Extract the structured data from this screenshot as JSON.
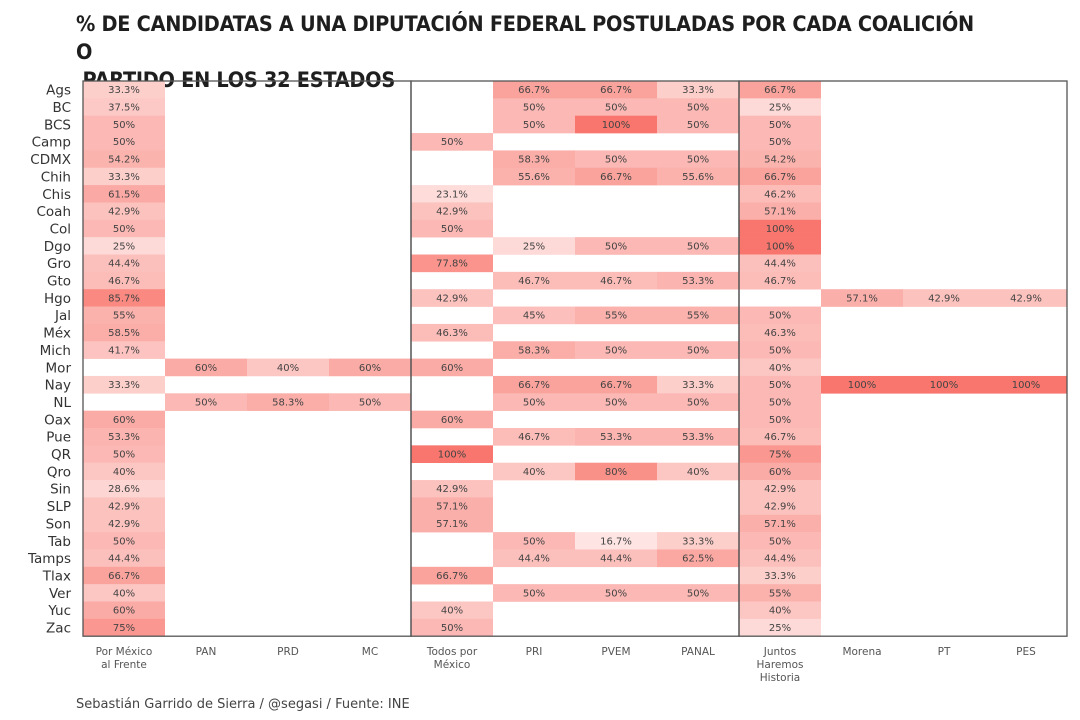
{
  "title": "% DE CANDIDATAS A UNA DIPUTACIÓN FEDERAL POSTULADAS POR CADA COALICIÓN O\n PARTIDO EN LOS 32 ESTADOS",
  "footer": "Sebastián Garrido de Sierra / @segasi / Fuente: INE",
  "colors": {
    "low": "#ffffff",
    "high": "#f8766d",
    "border": "#555555",
    "text": "#444444"
  },
  "chart_data": {
    "type": "heatmap",
    "title": "% DE CANDIDATAS A UNA DIPUTACIÓN FEDERAL POSTULADAS POR CADA COALICIÓN O PARTIDO EN LOS 32 ESTADOS",
    "xlabel": "",
    "ylabel": "",
    "value_range": [
      0,
      100
    ],
    "units": "%",
    "columns": [
      {
        "key": "PMAF",
        "label": [
          "Por México",
          "al Frente"
        ]
      },
      {
        "key": "PAN",
        "label": [
          "PAN"
        ]
      },
      {
        "key": "PRD",
        "label": [
          "PRD"
        ]
      },
      {
        "key": "MC",
        "label": [
          "MC"
        ]
      },
      {
        "key": "TPM",
        "label": [
          "Todos por",
          "México"
        ]
      },
      {
        "key": "PRI",
        "label": [
          "PRI"
        ]
      },
      {
        "key": "PVEM",
        "label": [
          "PVEM"
        ]
      },
      {
        "key": "PANAL",
        "label": [
          "PANAL"
        ]
      },
      {
        "key": "JHH",
        "label": [
          "Juntos",
          "Haremos",
          "Historia"
        ]
      },
      {
        "key": "Morena",
        "label": [
          "Morena"
        ]
      },
      {
        "key": "PT",
        "label": [
          "PT"
        ]
      },
      {
        "key": "PES",
        "label": [
          "PES"
        ]
      }
    ],
    "coalition_groups": [
      {
        "name": "Por México al Frente",
        "columns": [
          "PMAF",
          "PAN",
          "PRD",
          "MC"
        ]
      },
      {
        "name": "Todos por México",
        "columns": [
          "TPM",
          "PRI",
          "PVEM",
          "PANAL"
        ]
      },
      {
        "name": "Juntos Haremos Historia",
        "columns": [
          "JHH",
          "Morena",
          "PT",
          "PES"
        ]
      }
    ],
    "rows": [
      {
        "state": "Ags",
        "values": [
          33.3,
          null,
          null,
          null,
          null,
          66.7,
          66.7,
          33.3,
          66.7,
          null,
          null,
          null
        ],
        "labels": [
          "33.3%",
          "",
          "",
          "",
          "",
          "66.7%",
          "66.7%",
          "33.3%",
          "66.7%",
          "",
          "",
          ""
        ]
      },
      {
        "state": "BC",
        "values": [
          37.5,
          null,
          null,
          null,
          null,
          50,
          50,
          50,
          25,
          null,
          null,
          null
        ],
        "labels": [
          "37.5%",
          "",
          "",
          "",
          "",
          "50%",
          "50%",
          "50%",
          "25%",
          "",
          "",
          ""
        ]
      },
      {
        "state": "BCS",
        "values": [
          50,
          null,
          null,
          null,
          null,
          50,
          100,
          50,
          50,
          null,
          null,
          null
        ],
        "labels": [
          "50%",
          "",
          "",
          "",
          "",
          "50%",
          "100%",
          "50%",
          "50%",
          "",
          "",
          ""
        ]
      },
      {
        "state": "Camp",
        "values": [
          50,
          null,
          null,
          null,
          50,
          null,
          null,
          null,
          50,
          null,
          null,
          null
        ],
        "labels": [
          "50%",
          "",
          "",
          "",
          "50%",
          "",
          "",
          "",
          "50%",
          "",
          "",
          ""
        ]
      },
      {
        "state": "CDMX",
        "values": [
          54.2,
          null,
          null,
          null,
          null,
          58.3,
          50,
          50,
          54.2,
          null,
          null,
          null
        ],
        "labels": [
          "54.2%",
          "",
          "",
          "",
          "",
          "58.3%",
          "50%",
          "50%",
          "54.2%",
          "",
          "",
          ""
        ]
      },
      {
        "state": "Chih",
        "values": [
          33.3,
          null,
          null,
          null,
          null,
          55.6,
          66.7,
          55.6,
          66.7,
          null,
          null,
          null
        ],
        "labels": [
          "33.3%",
          "",
          "",
          "",
          "",
          "55.6%",
          "66.7%",
          "55.6%",
          "66.7%",
          "",
          "",
          ""
        ]
      },
      {
        "state": "Chis",
        "values": [
          61.5,
          null,
          null,
          null,
          23.1,
          null,
          null,
          null,
          46.2,
          null,
          null,
          null
        ],
        "labels": [
          "61.5%",
          "",
          "",
          "",
          "23.1%",
          "",
          "",
          "",
          "46.2%",
          "",
          "",
          ""
        ]
      },
      {
        "state": "Coah",
        "values": [
          42.9,
          null,
          null,
          null,
          42.9,
          null,
          null,
          null,
          57.1,
          null,
          null,
          null
        ],
        "labels": [
          "42.9%",
          "",
          "",
          "",
          "42.9%",
          "",
          "",
          "",
          "57.1%",
          "",
          "",
          ""
        ]
      },
      {
        "state": "Col",
        "values": [
          50,
          null,
          null,
          null,
          50,
          null,
          null,
          null,
          100,
          null,
          null,
          null
        ],
        "labels": [
          "50%",
          "",
          "",
          "",
          "50%",
          "",
          "",
          "",
          "100%",
          "",
          "",
          ""
        ]
      },
      {
        "state": "Dgo",
        "values": [
          25,
          null,
          null,
          null,
          null,
          25,
          50,
          50,
          100,
          null,
          null,
          null
        ],
        "labels": [
          "25%",
          "",
          "",
          "",
          "",
          "25%",
          "50%",
          "50%",
          "100%",
          "",
          "",
          ""
        ]
      },
      {
        "state": "Gro",
        "values": [
          44.4,
          null,
          null,
          null,
          77.8,
          null,
          null,
          null,
          44.4,
          null,
          null,
          null
        ],
        "labels": [
          "44.4%",
          "",
          "",
          "",
          "77.8%",
          "",
          "",
          "",
          "44.4%",
          "",
          "",
          ""
        ]
      },
      {
        "state": "Gto",
        "values": [
          46.7,
          null,
          null,
          null,
          null,
          46.7,
          46.7,
          53.3,
          46.7,
          null,
          null,
          null
        ],
        "labels": [
          "46.7%",
          "",
          "",
          "",
          "",
          "46.7%",
          "46.7%",
          "53.3%",
          "46.7%",
          "",
          "",
          ""
        ]
      },
      {
        "state": "Hgo",
        "values": [
          85.7,
          null,
          null,
          null,
          42.9,
          null,
          null,
          null,
          null,
          57.1,
          42.9,
          42.9
        ],
        "labels": [
          "85.7%",
          "",
          "",
          "",
          "42.9%",
          "",
          "",
          "",
          "",
          "57.1%",
          "42.9%",
          "42.9%"
        ]
      },
      {
        "state": "Jal",
        "values": [
          55,
          null,
          null,
          null,
          null,
          45,
          55,
          55,
          50,
          null,
          null,
          null
        ],
        "labels": [
          "55%",
          "",
          "",
          "",
          "",
          "45%",
          "55%",
          "55%",
          "50%",
          "",
          "",
          ""
        ]
      },
      {
        "state": "Méx",
        "values": [
          58.5,
          null,
          null,
          null,
          46.3,
          null,
          null,
          null,
          46.3,
          null,
          null,
          null
        ],
        "labels": [
          "58.5%",
          "",
          "",
          "",
          "46.3%",
          "",
          "",
          "",
          "46.3%",
          "",
          "",
          ""
        ]
      },
      {
        "state": "Mich",
        "values": [
          41.7,
          null,
          null,
          null,
          null,
          58.3,
          50,
          50,
          50,
          null,
          null,
          null
        ],
        "labels": [
          "41.7%",
          "",
          "",
          "",
          "",
          "58.3%",
          "50%",
          "50%",
          "50%",
          "",
          "",
          ""
        ]
      },
      {
        "state": "Mor",
        "values": [
          null,
          60,
          40,
          60,
          60,
          null,
          null,
          null,
          40,
          null,
          null,
          null
        ],
        "labels": [
          "",
          "60%",
          "40%",
          "60%",
          "60%",
          "",
          "",
          "",
          "40%",
          "",
          "",
          ""
        ]
      },
      {
        "state": "Nay",
        "values": [
          33.3,
          null,
          null,
          null,
          null,
          66.7,
          66.7,
          33.3,
          50,
          100,
          100,
          100
        ],
        "labels": [
          "33.3%",
          "",
          "",
          "",
          "",
          "66.7%",
          "66.7%",
          "33.3%",
          "50%",
          "100%",
          "100%",
          "100%"
        ]
      },
      {
        "state": "NL",
        "values": [
          null,
          50,
          58.3,
          50,
          null,
          50,
          50,
          50,
          50,
          null,
          null,
          null
        ],
        "labels": [
          "",
          "50%",
          "58.3%",
          "50%",
          "",
          "50%",
          "50%",
          "50%",
          "50%",
          "",
          "",
          ""
        ]
      },
      {
        "state": "Oax",
        "values": [
          60,
          null,
          null,
          null,
          60,
          null,
          null,
          null,
          50,
          null,
          null,
          null
        ],
        "labels": [
          "60%",
          "",
          "",
          "",
          "60%",
          "",
          "",
          "",
          "50%",
          "",
          "",
          ""
        ]
      },
      {
        "state": "Pue",
        "values": [
          53.3,
          null,
          null,
          null,
          null,
          46.7,
          53.3,
          53.3,
          46.7,
          null,
          null,
          null
        ],
        "labels": [
          "53.3%",
          "",
          "",
          "",
          "",
          "46.7%",
          "53.3%",
          "53.3%",
          "46.7%",
          "",
          "",
          ""
        ]
      },
      {
        "state": "QR",
        "values": [
          50,
          null,
          null,
          null,
          100,
          null,
          null,
          null,
          75,
          null,
          null,
          null
        ],
        "labels": [
          "50%",
          "",
          "",
          "",
          "100%",
          "",
          "",
          "",
          "75%",
          "",
          "",
          ""
        ]
      },
      {
        "state": "Qro",
        "values": [
          40,
          null,
          null,
          null,
          null,
          40,
          80,
          40,
          60,
          null,
          null,
          null
        ],
        "labels": [
          "40%",
          "",
          "",
          "",
          "",
          "40%",
          "80%",
          "40%",
          "60%",
          "",
          "",
          ""
        ]
      },
      {
        "state": "Sin",
        "values": [
          28.6,
          null,
          null,
          null,
          42.9,
          null,
          null,
          null,
          42.9,
          null,
          null,
          null
        ],
        "labels": [
          "28.6%",
          "",
          "",
          "",
          "42.9%",
          "",
          "",
          "",
          "42.9%",
          "",
          "",
          ""
        ]
      },
      {
        "state": "SLP",
        "values": [
          42.9,
          null,
          null,
          null,
          57.1,
          null,
          null,
          null,
          42.9,
          null,
          null,
          null
        ],
        "labels": [
          "42.9%",
          "",
          "",
          "",
          "57.1%",
          "",
          "",
          "",
          "42.9%",
          "",
          "",
          ""
        ]
      },
      {
        "state": "Son",
        "values": [
          42.9,
          null,
          null,
          null,
          57.1,
          null,
          null,
          null,
          57.1,
          null,
          null,
          null
        ],
        "labels": [
          "42.9%",
          "",
          "",
          "",
          "57.1%",
          "",
          "",
          "",
          "57.1%",
          "",
          "",
          ""
        ]
      },
      {
        "state": "Tab",
        "values": [
          50,
          null,
          null,
          null,
          null,
          50,
          16.7,
          33.3,
          50,
          null,
          null,
          null
        ],
        "labels": [
          "50%",
          "",
          "",
          "",
          "",
          "50%",
          "16.7%",
          "33.3%",
          "50%",
          "",
          "",
          ""
        ]
      },
      {
        "state": "Tamps",
        "values": [
          44.4,
          null,
          null,
          null,
          null,
          44.4,
          44.4,
          62.5,
          44.4,
          null,
          null,
          null
        ],
        "labels": [
          "44.4%",
          "",
          "",
          "",
          "",
          "44.4%",
          "44.4%",
          "62.5%",
          "44.4%",
          "",
          "",
          ""
        ]
      },
      {
        "state": "Tlax",
        "values": [
          66.7,
          null,
          null,
          null,
          66.7,
          null,
          null,
          null,
          33.3,
          null,
          null,
          null
        ],
        "labels": [
          "66.7%",
          "",
          "",
          "",
          "66.7%",
          "",
          "",
          "",
          "33.3%",
          "",
          "",
          ""
        ]
      },
      {
        "state": "Ver",
        "values": [
          40,
          null,
          null,
          null,
          null,
          50,
          50,
          50,
          55,
          null,
          null,
          null
        ],
        "labels": [
          "40%",
          "",
          "",
          "",
          "",
          "50%",
          "50%",
          "50%",
          "55%",
          "",
          "",
          ""
        ]
      },
      {
        "state": "Yuc",
        "values": [
          60,
          null,
          null,
          null,
          40,
          null,
          null,
          null,
          40,
          null,
          null,
          null
        ],
        "labels": [
          "60%",
          "",
          "",
          "",
          "40%",
          "",
          "",
          "",
          "40%",
          "",
          "",
          ""
        ]
      },
      {
        "state": "Zac",
        "values": [
          75,
          null,
          null,
          null,
          50,
          null,
          null,
          null,
          25,
          null,
          null,
          null
        ],
        "labels": [
          "75%",
          "",
          "",
          "",
          "50%",
          "",
          "",
          "",
          "25%",
          "",
          "",
          ""
        ]
      }
    ]
  }
}
